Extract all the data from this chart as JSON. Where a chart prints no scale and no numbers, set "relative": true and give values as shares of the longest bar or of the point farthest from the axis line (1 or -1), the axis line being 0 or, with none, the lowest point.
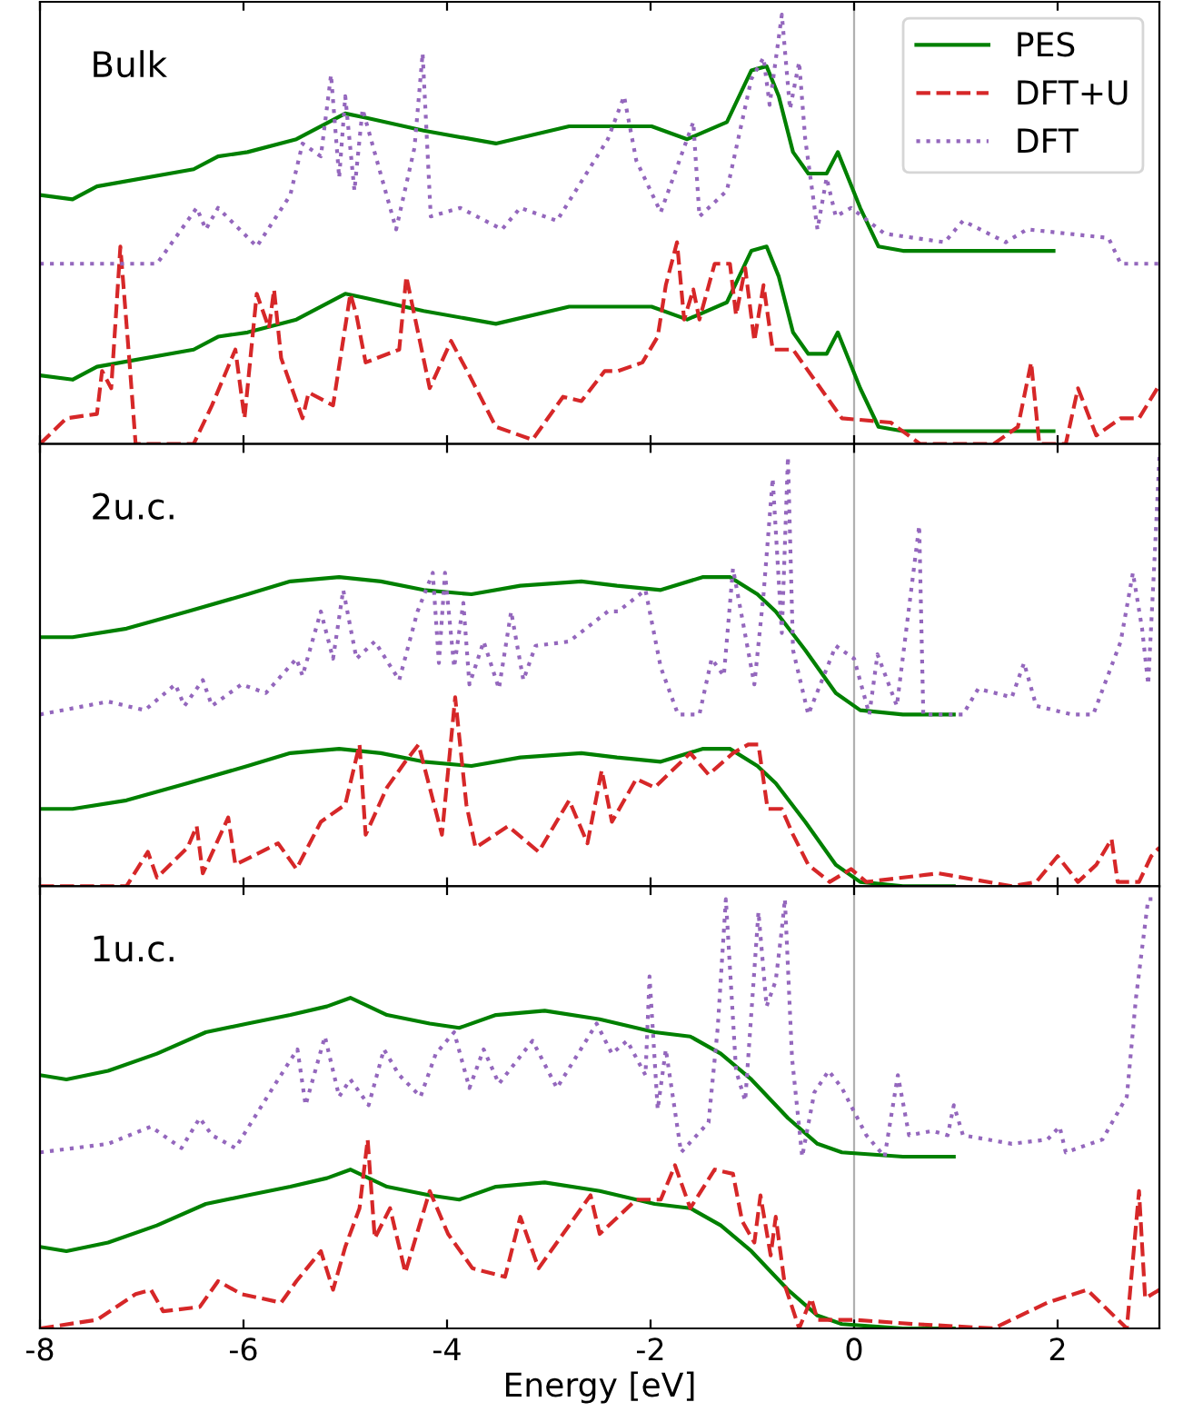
{
  "chart_data": [
    {
      "type": "line",
      "relative": true,
      "xlim": [
        -8,
        3
      ],
      "xticks": [
        -8,
        -6,
        -4,
        -2,
        0,
        2
      ],
      "tick_labels": false,
      "legend": "top right",
      "grid": false,
      "marker": "none",
      "annotations": [
        "Bulk"
      ],
      "ref_lines": [
        {
          "axis": "x",
          "value": 0,
          "color": "#b0b0b0"
        }
      ],
      "series": [
        {
          "name": "PES",
          "color": "#008000",
          "line_style": "solid",
          "x": [
            -8,
            -7.68,
            -7.44,
            -6.49,
            -6.25,
            -5.96,
            -5.48,
            -5.0,
            -4.8,
            -4.23,
            -3.52,
            -2.8,
            -2.33,
            -1.99,
            -1.64,
            -1.25,
            -1.01,
            -0.86,
            -0.74,
            -0.6,
            -0.45,
            -0.27,
            -0.16,
            0.06,
            0.24,
            0.48,
            1.96
          ],
          "values": [
            0.58,
            0.57,
            0.6,
            0.64,
            0.67,
            0.68,
            0.71,
            0.77,
            0.76,
            0.73,
            0.7,
            0.74,
            0.74,
            0.74,
            0.71,
            0.75,
            0.87,
            0.88,
            0.81,
            0.68,
            0.63,
            0.63,
            0.68,
            0.55,
            0.46,
            0.45,
            0.45
          ]
        },
        {
          "color": "#008000",
          "line_style": "solid",
          "x": [
            -8,
            -7.68,
            -7.44,
            -6.49,
            -6.25,
            -5.96,
            -5.48,
            -5.0,
            -4.8,
            -4.23,
            -3.52,
            -2.8,
            -2.33,
            -1.99,
            -1.64,
            -1.25,
            -1.01,
            -0.86,
            -0.74,
            -0.6,
            -0.45,
            -0.27,
            -0.16,
            0.06,
            0.24,
            0.48,
            1.96
          ],
          "values": [
            0.16,
            0.15,
            0.18,
            0.22,
            0.25,
            0.26,
            0.29,
            0.35,
            0.34,
            0.31,
            0.28,
            0.32,
            0.32,
            0.32,
            0.29,
            0.33,
            0.45,
            0.46,
            0.39,
            0.26,
            0.21,
            0.21,
            0.26,
            0.13,
            0.04,
            0.03,
            0.03
          ]
        },
        {
          "name": "DFT+U",
          "color": "#d62728",
          "line_style": "dashed",
          "x": [
            -8,
            -7.74,
            -7.44,
            -7.39,
            -7.3,
            -7.21,
            -7.12,
            -7.06,
            -6.49,
            -6.31,
            -6.08,
            -5.99,
            -5.87,
            -5.75,
            -5.7,
            -5.63,
            -5.42,
            -5.36,
            -5.12,
            -4.95,
            -4.89,
            -4.8,
            -4.47,
            -4.4,
            -4.17,
            -3.96,
            -3.78,
            -3.52,
            -3.16,
            -2.86,
            -2.68,
            -2.45,
            -2.32,
            -2.08,
            -1.93,
            -1.85,
            -1.74,
            -1.67,
            -1.58,
            -1.52,
            -1.37,
            -1.22,
            -1.16,
            -1.07,
            -0.98,
            -0.89,
            -0.8,
            -0.6,
            -0.36,
            -0.12,
            0.36,
            0.65,
            1.37,
            1.61,
            1.74,
            1.82,
            2.08,
            2.2,
            2.38,
            2.62,
            2.8,
            2.98
          ],
          "values": [
            0,
            0.06,
            0.07,
            0.17,
            0.13,
            0.46,
            0.19,
            0,
            0,
            0.09,
            0.22,
            0.06,
            0.35,
            0.27,
            0.36,
            0.2,
            0.06,
            0.12,
            0.09,
            0.35,
            0.3,
            0.19,
            0.22,
            0.39,
            0.13,
            0.24,
            0.16,
            0.04,
            0.01,
            0.11,
            0.1,
            0.17,
            0.17,
            0.19,
            0.25,
            0.37,
            0.47,
            0.29,
            0.36,
            0.29,
            0.42,
            0.42,
            0.3,
            0.41,
            0.24,
            0.37,
            0.22,
            0.22,
            0.14,
            0.06,
            0.05,
            0,
            0,
            0.04,
            0.19,
            0,
            0,
            0.13,
            0.02,
            0.06,
            0.06,
            0.13
          ]
        },
        {
          "name": "DFT",
          "color": "#9467bd",
          "line_style": "dotted",
          "x": [
            -8,
            -6.85,
            -6.46,
            -6.37,
            -6.25,
            -5.87,
            -5.54,
            -5.42,
            -5.24,
            -5.14,
            -5.06,
            -5.0,
            -4.91,
            -4.83,
            -4.5,
            -4.32,
            -4.24,
            -4.16,
            -3.87,
            -3.46,
            -3.28,
            -2.92,
            -2.42,
            -2.26,
            -2.14,
            -1.9,
            -1.58,
            -1.52,
            -1.25,
            -1.01,
            -0.89,
            -0.83,
            -0.71,
            -0.63,
            -0.54,
            -0.48,
            -0.36,
            -0.27,
            -0.18,
            -0.03,
            0.3,
            0.89,
            1.07,
            1.49,
            1.7,
            2.5,
            2.62,
            3.0
          ],
          "values": [
            0.42,
            0.42,
            0.55,
            0.5,
            0.55,
            0.46,
            0.58,
            0.7,
            0.67,
            0.86,
            0.62,
            0.81,
            0.59,
            0.78,
            0.5,
            0.69,
            0.91,
            0.53,
            0.55,
            0.5,
            0.55,
            0.52,
            0.71,
            0.81,
            0.66,
            0.54,
            0.75,
            0.53,
            0.59,
            0.85,
            0.9,
            0.79,
            1.0,
            0.78,
            0.89,
            0.71,
            0.5,
            0.62,
            0.53,
            0.55,
            0.49,
            0.47,
            0.52,
            0.47,
            0.5,
            0.48,
            0.42,
            0.42
          ]
        }
      ]
    },
    {
      "type": "line",
      "relative": true,
      "xlim": [
        -8,
        3
      ],
      "xticks": [
        -8,
        -6,
        -4,
        -2,
        0,
        2
      ],
      "tick_labels": false,
      "grid": false,
      "marker": "none",
      "annotations": [
        "2u.c."
      ],
      "ref_lines": [
        {
          "axis": "x",
          "value": 0,
          "color": "#b0b0b0"
        }
      ],
      "series": [
        {
          "color": "#008000",
          "line_style": "solid",
          "x": [
            -8,
            -7.68,
            -7.15,
            -6.55,
            -5.96,
            -5.54,
            -5.06,
            -4.65,
            -4.23,
            -3.76,
            -3.28,
            -2.68,
            -2.33,
            -1.9,
            -1.49,
            -1.22,
            -0.95,
            -0.77,
            -0.48,
            -0.18,
            0.06,
            0.48,
            0.98
          ],
          "values": [
            0.58,
            0.58,
            0.6,
            0.64,
            0.68,
            0.71,
            0.72,
            0.71,
            0.69,
            0.68,
            0.7,
            0.71,
            0.7,
            0.69,
            0.72,
            0.72,
            0.68,
            0.64,
            0.55,
            0.45,
            0.41,
            0.4,
            0.4
          ]
        },
        {
          "color": "#008000",
          "line_style": "solid",
          "x": [
            -8,
            -7.68,
            -7.15,
            -6.55,
            -5.96,
            -5.54,
            -5.06,
            -4.65,
            -4.23,
            -3.76,
            -3.28,
            -2.68,
            -2.33,
            -1.9,
            -1.49,
            -1.22,
            -0.95,
            -0.77,
            -0.48,
            -0.18,
            0.06,
            0.48,
            0.98
          ],
          "values": [
            0.18,
            0.18,
            0.2,
            0.24,
            0.28,
            0.31,
            0.32,
            0.31,
            0.29,
            0.28,
            0.3,
            0.31,
            0.3,
            0.29,
            0.32,
            0.32,
            0.28,
            0.24,
            0.15,
            0.05,
            0.01,
            0.0,
            0.0
          ]
        },
        {
          "color": "#d62728",
          "line_style": "dashed",
          "x": [
            -8,
            -7.15,
            -6.94,
            -6.85,
            -6.55,
            -6.46,
            -6.4,
            -6.15,
            -6.08,
            -5.66,
            -5.48,
            -5.24,
            -5.0,
            -4.86,
            -4.8,
            -4.59,
            -4.41,
            -4.28,
            -4.05,
            -3.92,
            -3.81,
            -3.72,
            -3.4,
            -3.1,
            -2.8,
            -2.62,
            -2.48,
            -2.38,
            -2.14,
            -1.96,
            -1.61,
            -1.43,
            -1.19,
            -1.04,
            -0.94,
            -0.85,
            -0.71,
            -0.6,
            -0.45,
            -0.24,
            -0.03,
            0.12,
            0.83,
            1.55,
            1.79,
            2.0,
            2.2,
            2.38,
            2.53,
            2.59,
            2.8,
            2.92,
            3.0
          ],
          "values": [
            0,
            0,
            0.08,
            0.02,
            0.09,
            0.14,
            0.03,
            0.16,
            0.05,
            0.1,
            0.04,
            0.15,
            0.19,
            0.33,
            0.12,
            0.23,
            0.29,
            0.33,
            0.12,
            0.44,
            0.19,
            0.09,
            0.14,
            0.08,
            0.2,
            0.1,
            0.27,
            0.15,
            0.25,
            0.23,
            0.31,
            0.26,
            0.31,
            0.33,
            0.33,
            0.18,
            0.18,
            0.12,
            0.05,
            0.01,
            0.04,
            0.01,
            0.03,
            0,
            0.01,
            0.07,
            0.01,
            0.05,
            0.11,
            0.01,
            0.01,
            0.07,
            0.09
          ]
        },
        {
          "color": "#9467bd",
          "line_style": "dotted",
          "x": [
            -8,
            -7.33,
            -6.97,
            -6.67,
            -6.58,
            -6.4,
            -6.31,
            -6.02,
            -5.78,
            -5.48,
            -5.42,
            -5.24,
            -5.12,
            -5.02,
            -4.89,
            -4.71,
            -4.47,
            -4.29,
            -4.14,
            -4.08,
            -4.02,
            -3.93,
            -3.84,
            -3.78,
            -3.64,
            -3.49,
            -3.37,
            -3.25,
            -3.13,
            -2.8,
            -2.42,
            -2.32,
            -2.05,
            -1.9,
            -1.73,
            -1.52,
            -1.4,
            -1.28,
            -1.19,
            -0.98,
            -0.89,
            -0.8,
            -0.71,
            -0.65,
            -0.6,
            -0.45,
            -0.18,
            0.0,
            0.15,
            0.23,
            0.42,
            0.64,
            0.68,
            1.07,
            1.22,
            1.55,
            1.67,
            1.79,
            2.14,
            2.35,
            2.62,
            2.74,
            2.83,
            2.89,
            2.95,
            3.0
          ],
          "values": [
            0.4,
            0.43,
            0.41,
            0.47,
            0.42,
            0.48,
            0.42,
            0.47,
            0.45,
            0.53,
            0.49,
            0.64,
            0.53,
            0.69,
            0.53,
            0.57,
            0.48,
            0.64,
            0.73,
            0.52,
            0.73,
            0.51,
            0.66,
            0.47,
            0.57,
            0.46,
            0.64,
            0.48,
            0.56,
            0.57,
            0.64,
            0.64,
            0.69,
            0.51,
            0.4,
            0.4,
            0.53,
            0.49,
            0.74,
            0.47,
            0.68,
            0.95,
            0.59,
            1.0,
            0.55,
            0.4,
            0.56,
            0.53,
            0.4,
            0.54,
            0.42,
            0.84,
            0.4,
            0.4,
            0.46,
            0.44,
            0.52,
            0.42,
            0.4,
            0.4,
            0.57,
            0.73,
            0.6,
            0.47,
            0.75,
            1.0
          ]
        }
      ]
    },
    {
      "type": "line",
      "relative": true,
      "xlim": [
        -8,
        3
      ],
      "xticks": [
        -8,
        -6,
        -4,
        -2,
        0,
        2
      ],
      "tick_labels": "x",
      "xlabel": "Energy [eV]",
      "grid": false,
      "marker": "none",
      "annotations": [
        "1u.c."
      ],
      "ref_lines": [
        {
          "axis": "x",
          "value": 0,
          "color": "#b0b0b0"
        }
      ],
      "series": [
        {
          "color": "#008000",
          "line_style": "solid",
          "x": [
            -8,
            -7.74,
            -7.33,
            -6.85,
            -6.37,
            -5.96,
            -5.54,
            -5.18,
            -4.95,
            -4.59,
            -4.17,
            -3.88,
            -3.52,
            -3.04,
            -2.5,
            -1.96,
            -1.61,
            -1.31,
            -1.01,
            -0.65,
            -0.36,
            -0.12,
            0.48,
            0.98
          ],
          "values": [
            0.59,
            0.58,
            0.6,
            0.64,
            0.69,
            0.71,
            0.73,
            0.75,
            0.77,
            0.73,
            0.71,
            0.7,
            0.73,
            0.74,
            0.72,
            0.69,
            0.68,
            0.64,
            0.58,
            0.49,
            0.43,
            0.41,
            0.4,
            0.4
          ]
        },
        {
          "color": "#008000",
          "line_style": "solid",
          "x": [
            -8,
            -7.74,
            -7.33,
            -6.85,
            -6.37,
            -5.96,
            -5.54,
            -5.18,
            -4.95,
            -4.59,
            -4.17,
            -3.88,
            -3.52,
            -3.04,
            -2.5,
            -1.96,
            -1.61,
            -1.31,
            -1.01,
            -0.65,
            -0.36,
            -0.12,
            0.48,
            0.98
          ],
          "values": [
            0.19,
            0.18,
            0.2,
            0.24,
            0.29,
            0.31,
            0.33,
            0.35,
            0.37,
            0.33,
            0.31,
            0.3,
            0.33,
            0.34,
            0.32,
            0.29,
            0.28,
            0.24,
            0.18,
            0.09,
            0.03,
            0.01,
            0.0,
            0.0
          ]
        },
        {
          "color": "#d62728",
          "line_style": "dashed",
          "x": [
            -8,
            -7.44,
            -7.06,
            -6.91,
            -6.79,
            -6.43,
            -6.25,
            -6.02,
            -5.63,
            -5.48,
            -5.24,
            -5.12,
            -5.0,
            -4.86,
            -4.78,
            -4.71,
            -4.56,
            -4.41,
            -4.17,
            -3.99,
            -3.75,
            -3.43,
            -3.28,
            -3.1,
            -2.86,
            -2.59,
            -2.5,
            -2.14,
            -1.9,
            -1.76,
            -1.61,
            -1.37,
            -1.19,
            -1.1,
            -0.98,
            -0.92,
            -0.82,
            -0.77,
            -0.68,
            -0.54,
            -0.42,
            -0.36,
            0.0,
            0.6,
            1.37,
            1.9,
            2.29,
            2.68,
            2.8,
            2.86,
            3.0
          ],
          "values": [
            0,
            0.02,
            0.08,
            0.09,
            0.04,
            0.05,
            0.11,
            0.08,
            0.06,
            0.11,
            0.18,
            0.09,
            0.19,
            0.28,
            0.44,
            0.21,
            0.28,
            0.13,
            0.32,
            0.22,
            0.14,
            0.12,
            0.26,
            0.14,
            0.22,
            0.31,
            0.22,
            0.3,
            0.3,
            0.38,
            0.28,
            0.37,
            0.36,
            0.25,
            0.2,
            0.31,
            0.17,
            0.26,
            0.1,
            0.0,
            0.07,
            0.02,
            0.02,
            0.01,
            0,
            0.06,
            0.09,
            0,
            0.32,
            0.07,
            0.09
          ]
        },
        {
          "color": "#9467bd",
          "line_style": "dotted",
          "x": [
            -8,
            -7.33,
            -6.91,
            -6.61,
            -6.43,
            -6.31,
            -6.08,
            -5.66,
            -5.47,
            -5.39,
            -5.2,
            -5.06,
            -4.95,
            -4.77,
            -4.62,
            -4.47,
            -4.26,
            -4.11,
            -3.93,
            -3.78,
            -3.64,
            -3.49,
            -3.16,
            -2.92,
            -2.53,
            -2.38,
            -2.23,
            -2.05,
            -2.01,
            -1.93,
            -1.85,
            -1.7,
            -1.43,
            -1.34,
            -1.26,
            -1.16,
            -1.07,
            -0.94,
            -0.86,
            -0.77,
            -0.71,
            -0.68,
            -0.61,
            -0.51,
            -0.39,
            -0.25,
            -0.12,
            0.12,
            0.3,
            0.43,
            0.54,
            0.77,
            0.92,
            0.98,
            1.07,
            1.55,
            1.9,
            2.02,
            2.08,
            2.44,
            2.68,
            2.77,
            2.89,
            3.0
          ],
          "values": [
            0.41,
            0.43,
            0.47,
            0.42,
            0.49,
            0.45,
            0.42,
            0.58,
            0.65,
            0.52,
            0.68,
            0.54,
            0.58,
            0.52,
            0.65,
            0.59,
            0.54,
            0.64,
            0.69,
            0.56,
            0.65,
            0.57,
            0.67,
            0.56,
            0.71,
            0.64,
            0.67,
            0.59,
            0.82,
            0.51,
            0.65,
            0.41,
            0.48,
            0.7,
            1.0,
            0.6,
            0.53,
            0.97,
            0.75,
            0.81,
            0.93,
            1.0,
            0.63,
            0.4,
            0.55,
            0.6,
            0.56,
            0.45,
            0.4,
            0.59,
            0.45,
            0.46,
            0.45,
            0.52,
            0.45,
            0.43,
            0.44,
            0.47,
            0.41,
            0.44,
            0.54,
            0.77,
            1.0,
            1.0
          ]
        }
      ]
    }
  ]
}
